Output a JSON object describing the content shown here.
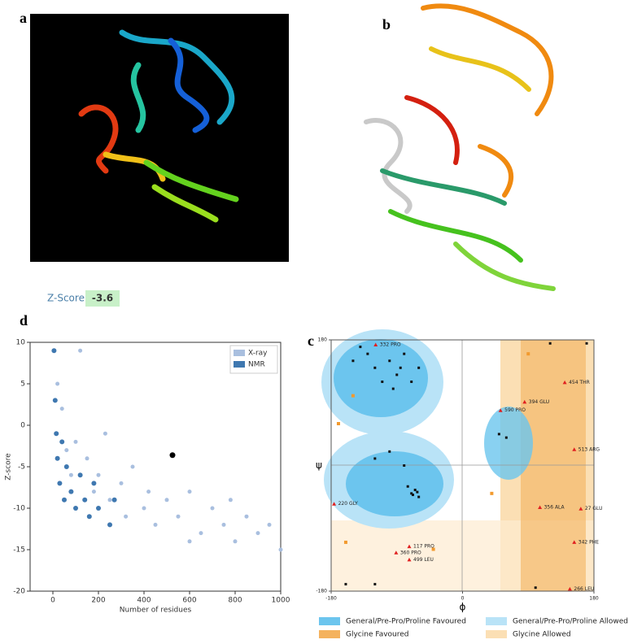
{
  "panel_labels": [
    "a",
    "b",
    "c",
    "d"
  ],
  "z_score": {
    "label": "Z-Score:",
    "value": -3.6
  },
  "chart_data": [
    {
      "type": "scatter",
      "xlabel": "Number of residues",
      "ylabel": "Z-score",
      "xlim": [
        -100,
        1000
      ],
      "ylim": [
        -20,
        10
      ],
      "xticks": [
        0,
        200,
        400,
        600,
        800,
        1000
      ],
      "yticks": [
        -20,
        -15,
        -10,
        -5,
        0,
        5,
        10
      ],
      "legend": "upper right",
      "series": [
        {
          "name": "X-ray",
          "color": "#a9bfdf",
          "x": [
            20,
            40,
            60,
            80,
            100,
            150,
            180,
            200,
            250,
            300,
            320,
            350,
            400,
            420,
            450,
            500,
            550,
            600,
            650,
            700,
            750,
            800,
            850,
            900,
            950,
            1000,
            120,
            230,
            600,
            780
          ],
          "y": [
            5,
            2,
            -3,
            -6,
            -2,
            -4,
            -8,
            -6,
            -9,
            -7,
            -11,
            -5,
            -10,
            -8,
            -12,
            -9,
            -11,
            -8,
            -13,
            -10,
            -12,
            -14,
            -11,
            -13,
            -12,
            -15,
            9,
            -1,
            -14,
            -9
          ]
        },
        {
          "name": "NMR",
          "color": "#3f78b0",
          "x": [
            5,
            10,
            15,
            20,
            30,
            40,
            50,
            60,
            80,
            100,
            120,
            140,
            160,
            180,
            200,
            250,
            270
          ],
          "y": [
            9,
            3,
            -1,
            -4,
            -7,
            -2,
            -9,
            -5,
            -8,
            -10,
            -6,
            -9,
            -11,
            -7,
            -10,
            -12,
            -9
          ]
        }
      ],
      "highlight": {
        "x": 525,
        "y": -3.6,
        "color": "#000000"
      }
    },
    {
      "type": "ramachandran",
      "xlabel": "ϕ",
      "ylabel": "ψ",
      "xlim": [
        -180,
        180
      ],
      "ylim": [
        -180,
        180
      ],
      "xticks": [
        -180,
        0,
        180
      ],
      "yticks": [
        -180,
        180
      ],
      "legend": [
        {
          "name": "General/Pre-Pro/Proline Favoured",
          "color": "#6cc5ee"
        },
        {
          "name": "General/Pre-Pro/Proline Allowed",
          "color": "#b9e3f7"
        },
        {
          "name": "Glycine Favoured",
          "color": "#f4b25e"
        },
        {
          "name": "Glycine Allowed",
          "color": "#fbdfb4"
        }
      ],
      "favoured_points": {
        "color": "#111111",
        "x": [
          -70,
          -65,
          -60,
          -75,
          -62,
          -68,
          -90,
          -120,
          -100,
          -80,
          -130,
          -110,
          -140,
          -85,
          -95,
          -150,
          -60,
          -70,
          60,
          50,
          -160,
          -120,
          100,
          120,
          170,
          -100,
          -120,
          -80
        ],
        "y": [
          -40,
          -35,
          -45,
          -30,
          -38,
          -42,
          130,
          140,
          150,
          160,
          160,
          120,
          170,
          140,
          110,
          150,
          140,
          120,
          40,
          45,
          -170,
          -170,
          -175,
          175,
          175,
          20,
          10,
          0
        ]
      },
      "allowed_points": {
        "color": "#f29a2e",
        "x": [
          -150,
          -170,
          40,
          -40,
          90,
          -160
        ],
        "y": [
          100,
          60,
          -40,
          -120,
          160,
          -110
        ]
      },
      "outliers": {
        "color": "#e02020",
        "labels": [
          "332 PRO",
          "454 THR",
          "394 GLU",
          "590 PRO",
          "513 ARG",
          "356 ALA",
          "27 GLU",
          "342 PHE",
          "266 LEU",
          "117 PRO",
          "360 PRO",
          "499 LEU",
          "220 GLY"
        ],
        "x": [
          -119,
          140,
          85,
          52,
          153,
          106,
          162,
          153,
          147,
          -73,
          -91,
          -73,
          -176
        ],
        "y": [
          173,
          119,
          91,
          79,
          23,
          -60,
          -62,
          -110,
          -177,
          -116,
          -125,
          -135,
          -55
        ]
      }
    }
  ]
}
